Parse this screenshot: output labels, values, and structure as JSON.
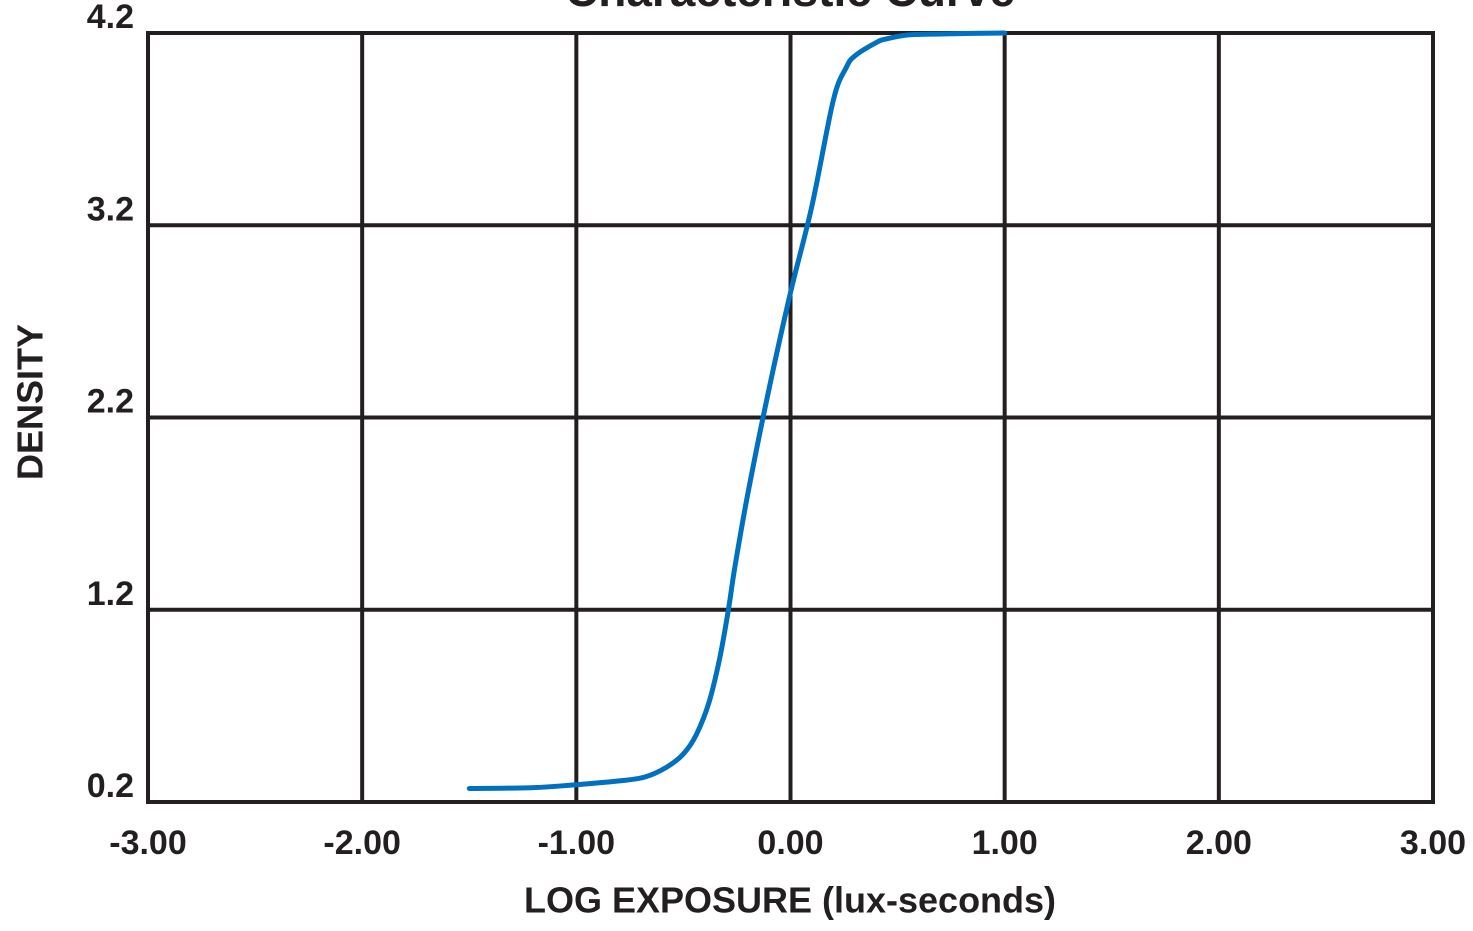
{
  "chart_data": {
    "type": "line",
    "title": "Characteristic Curve",
    "xlabel": "LOG EXPOSURE (lux-seconds)",
    "ylabel": "DENSITY",
    "xlim": [
      -3.0,
      3.0
    ],
    "ylim": [
      0.2,
      4.2
    ],
    "x_ticks": [
      -3.0,
      -2.0,
      -1.0,
      0.0,
      1.0,
      2.0,
      3.0
    ],
    "x_tick_labels": [
      "-3.00",
      "-2.00",
      "-1.00",
      "0.00",
      "1.00",
      "2.00",
      "3.00"
    ],
    "y_ticks": [
      0.2,
      1.2,
      2.2,
      3.2,
      4.2
    ],
    "y_tick_labels": [
      "0.2",
      "1.2",
      "2.2",
      "3.2",
      "4.2"
    ],
    "grid": true,
    "legend": "none",
    "series": [
      {
        "color": "#0070c0",
        "x": [
          -1.5,
          -1.2,
          -1.0,
          -0.8,
          -0.68,
          -0.58,
          -0.5,
          -0.44,
          -0.38,
          -0.33,
          -0.29,
          -0.26,
          -0.2,
          -0.1,
          0.0,
          0.1,
          0.2,
          0.26,
          0.3,
          0.4,
          0.45,
          0.55,
          0.7,
          0.85,
          1.0
        ],
        "y": [
          0.27,
          0.275,
          0.29,
          0.31,
          0.33,
          0.38,
          0.45,
          0.55,
          0.72,
          0.95,
          1.2,
          1.42,
          1.8,
          2.35,
          2.85,
          3.3,
          3.85,
          4.02,
          4.08,
          4.15,
          4.17,
          4.19,
          4.195,
          4.198,
          4.2
        ]
      }
    ]
  }
}
